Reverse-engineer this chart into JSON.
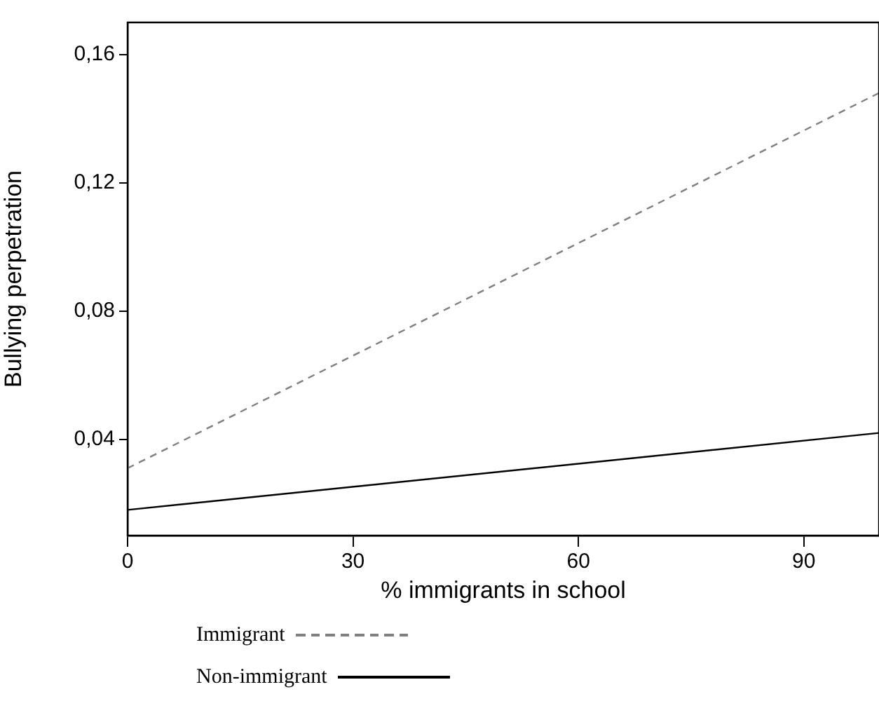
{
  "chart_data": {
    "type": "line",
    "xlabel": "% immigrants in school",
    "ylabel": "Bullying perpetration",
    "x": [
      0,
      100
    ],
    "xlim": [
      0,
      100
    ],
    "xticks": [
      0,
      30,
      60,
      90
    ],
    "ylim": [
      0.01,
      0.17
    ],
    "yticks": [
      {
        "value": 0.04,
        "label": "0,04"
      },
      {
        "value": 0.08,
        "label": "0,08"
      },
      {
        "value": 0.12,
        "label": "0,12"
      },
      {
        "value": 0.16,
        "label": "0,16"
      }
    ],
    "series": [
      {
        "name": "Immigrant",
        "color": "#808080",
        "line_style": "dashed",
        "values": [
          0.031,
          0.148
        ]
      },
      {
        "name": "Non-immigrant",
        "color": "#000000",
        "line_style": "solid",
        "values": [
          0.018,
          0.042
        ]
      }
    ],
    "grid": false,
    "marker": "none",
    "legend": "bottom"
  }
}
